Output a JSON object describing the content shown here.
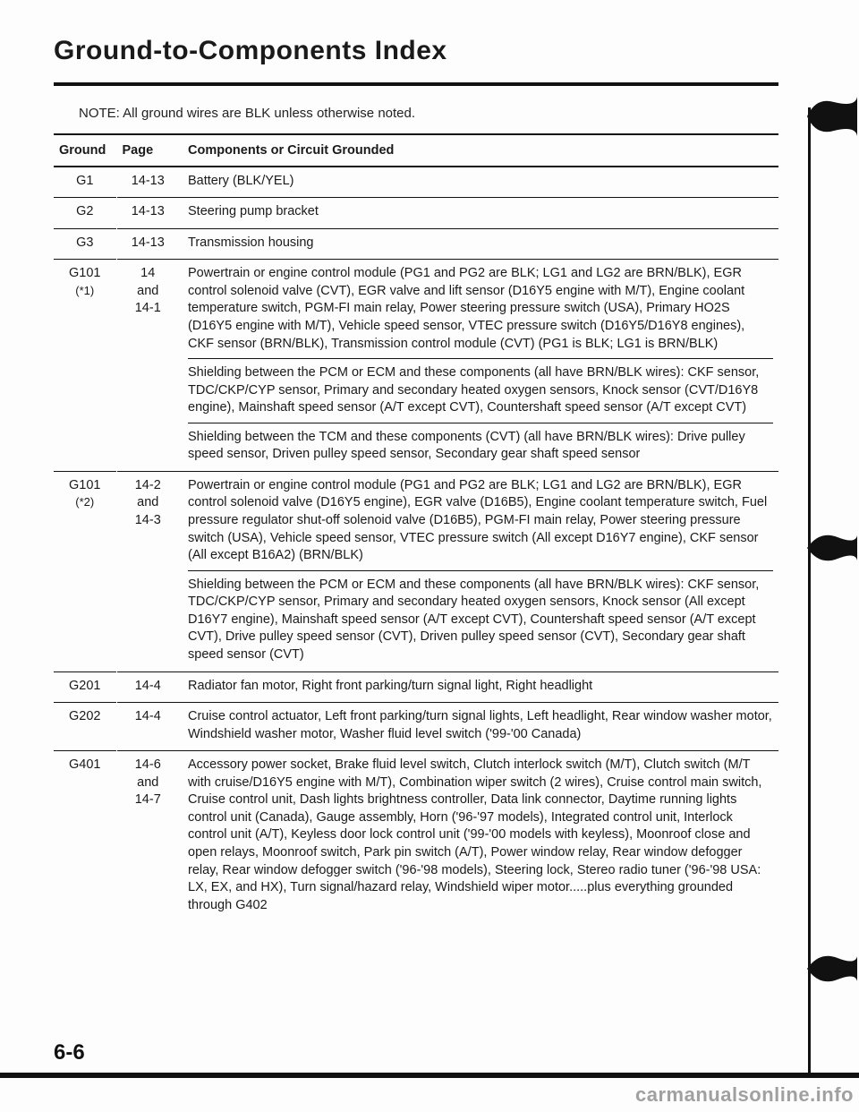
{
  "title": "Ground-to-Components Index",
  "note": "NOTE: All ground wires are BLK unless otherwise noted.",
  "headers": {
    "ground": "Ground",
    "page": "Page",
    "components": "Components or Circuit Grounded"
  },
  "rows": [
    {
      "ground": "G1",
      "page": "14-13",
      "blocks": [
        "Battery (BLK/YEL)"
      ]
    },
    {
      "ground": "G2",
      "page": "14-13",
      "blocks": [
        "Steering pump bracket"
      ]
    },
    {
      "ground": "G3",
      "page": "14-13",
      "blocks": [
        "Transmission housing"
      ]
    },
    {
      "ground": "G101",
      "ground_sub": "(*1)",
      "page": "14\nand\n14-1",
      "blocks": [
        "Powertrain or engine control module (PG1 and PG2 are BLK; LG1 and LG2 are BRN/BLK), EGR control solenoid valve (CVT), EGR valve and lift sensor (D16Y5 engine with M/T), Engine coolant temperature switch, PGM-FI main relay, Power steering pressure switch (USA), Primary HO2S (D16Y5 engine with M/T), Vehicle speed sensor, VTEC pressure switch (D16Y5/D16Y8 engines), CKF sensor (BRN/BLK), Transmission control module (CVT) (PG1 is BLK; LG1 is BRN/BLK)",
        "Shielding between the PCM or ECM and these components (all have BRN/BLK wires): CKF sensor, TDC/CKP/CYP sensor, Primary and secondary heated oxygen sensors, Knock sensor (CVT/D16Y8 engine), Mainshaft speed sensor (A/T except CVT), Countershaft speed sensor (A/T except CVT)",
        "Shielding between the TCM and these components (CVT) (all have BRN/BLK wires): Drive pulley speed sensor, Driven pulley speed sensor, Secondary gear shaft speed sensor"
      ]
    },
    {
      "ground": "G101",
      "ground_sub": "(*2)",
      "page": "14-2\nand\n14-3",
      "blocks": [
        "Powertrain or engine control module (PG1 and PG2 are BLK; LG1 and LG2 are BRN/BLK), EGR control solenoid valve (D16Y5 engine), EGR valve (D16B5), Engine coolant temperature switch, Fuel pressure regulator shut-off solenoid valve (D16B5), PGM-FI main relay, Power steering pressure switch (USA), Vehicle speed sensor, VTEC pressure switch (All except D16Y7 engine), CKF sensor (All except B16A2) (BRN/BLK)",
        "Shielding between the PCM or ECM and these components (all have BRN/BLK wires): CKF sensor, TDC/CKP/CYP sensor, Primary and secondary heated oxygen sensors, Knock sensor (All except D16Y7 engine), Mainshaft speed sensor (A/T except CVT), Countershaft speed sensor (A/T except CVT), Drive pulley speed sensor (CVT), Driven pulley speed sensor (CVT), Secondary gear shaft speed sensor (CVT)"
      ]
    },
    {
      "ground": "G201",
      "page": "14-4",
      "blocks": [
        "Radiator fan motor, Right front parking/turn signal light, Right headlight"
      ]
    },
    {
      "ground": "G202",
      "page": "14-4",
      "blocks": [
        "Cruise control actuator, Left front parking/turn signal lights, Left headlight, Rear window washer motor, Windshield washer motor, Washer fluid level switch ('99-'00 Canada)"
      ]
    },
    {
      "ground": "G401",
      "page": "14-6\nand\n14-7",
      "blocks": [
        "Accessory power socket, Brake fluid level switch, Clutch interlock switch (M/T), Clutch switch (M/T with cruise/D16Y5 engine with M/T), Combination wiper switch (2 wires), Cruise control main switch, Cruise control unit, Dash lights brightness controller, Data link connector, Daytime running lights control unit (Canada), Gauge assembly, Horn ('96-'97 models), Integrated control unit, Interlock control unit (A/T), Keyless door lock control unit ('99-'00 models with keyless), Moonroof close and open relays, Moonroof switch, Park pin switch (A/T), Power window relay, Rear window defogger relay, Rear window defogger switch ('96-'98 models), Steering lock, Stereo radio tuner ('96-'98 USA: LX, EX, and HX), Turn signal/hazard relay, Windshield wiper motor.....plus everything grounded through G402"
      ]
    }
  ],
  "page_number": "6-6",
  "watermark": "carmanualsonline.info"
}
